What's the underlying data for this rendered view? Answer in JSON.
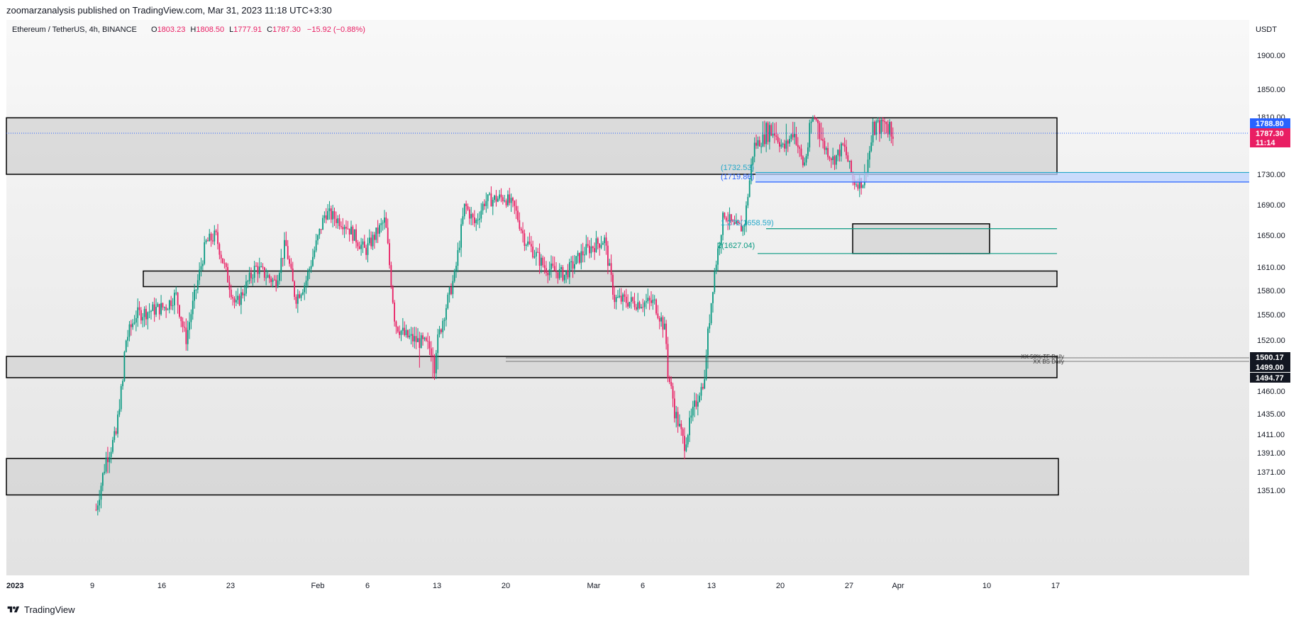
{
  "header": {
    "published_by": "zoomarzanalysis published on TradingView.com, Mar 31, 2023 11:18 UTC+3:30"
  },
  "legend": {
    "symbol": "Ethereum / TetherUS, 4h, BINANCE",
    "open_label": "O",
    "open": "1803.23",
    "high_label": "H",
    "high": "1808.50",
    "low_label": "L",
    "low": "1777.91",
    "close_label": "C",
    "close": "1787.30",
    "change": "−15.92 (−0.88%)"
  },
  "price_scale": {
    "currency": "USDT",
    "ticks": [
      "1900.00",
      "1850.00",
      "1810.00",
      "1730.00",
      "1690.00",
      "1650.00",
      "1610.00",
      "1580.00",
      "1550.00",
      "1520.00",
      "1460.00",
      "1435.00",
      "1411.00",
      "1391.00",
      "1371.00",
      "1351.00"
    ]
  },
  "price_badges": [
    {
      "text": "1788.80",
      "color": "#2962ff"
    },
    {
      "text": "1787.30",
      "color": "#e91e63"
    },
    {
      "text": "11:14",
      "color": "#e91e63"
    },
    {
      "text": "1500.17",
      "color": "#131722"
    },
    {
      "text": "1499.00",
      "color": "#131722"
    },
    {
      "text": "1494.77",
      "color": "#131722"
    }
  ],
  "level_labels": [
    "XX 50% TF Daily",
    "XX BS Daily"
  ],
  "fib_labels": [
    {
      "text": "(1732.53)",
      "color": "#22a7c9"
    },
    {
      "text": "(1719.86)",
      "color": "#2962ff"
    },
    {
      "text": "1.272(1658.59)",
      "color": "#22a7c9"
    },
    {
      "text": "2(1627.04)",
      "color": "#089981"
    }
  ],
  "time_axis": {
    "labels": [
      "2023",
      "9",
      "16",
      "23",
      "Feb",
      "6",
      "13",
      "20",
      "Mar",
      "6",
      "13",
      "20",
      "27",
      "Apr",
      "10",
      "17"
    ]
  },
  "footer": {
    "brand": "TradingView"
  },
  "colors": {
    "up": "#089981",
    "down": "#e91e63",
    "zone_fill": "#d6d6d6",
    "background_top": "#f8f8f8",
    "background_bottom": "#e2e2e2"
  },
  "chart_data": {
    "type": "candlestick",
    "title": "Ethereum / TetherUS, 4h, BINANCE",
    "ylabel": "USDT",
    "ylim": [
      1351,
      1922
    ],
    "x_range": [
      "2023-01-01",
      "2023-04-18"
    ],
    "key_points": [
      {
        "date": "2023-01-10",
        "close": 1330
      },
      {
        "date": "2023-01-11",
        "close": 1385
      },
      {
        "date": "2023-01-12",
        "close": 1410
      },
      {
        "date": "2023-01-13",
        "close": 1520
      },
      {
        "date": "2023-01-14",
        "close": 1550
      },
      {
        "date": "2023-01-17",
        "close": 1560
      },
      {
        "date": "2023-01-18",
        "close": 1575
      },
      {
        "date": "2023-01-19",
        "close": 1520
      },
      {
        "date": "2023-01-21",
        "close": 1640
      },
      {
        "date": "2023-01-22",
        "close": 1650
      },
      {
        "date": "2023-01-24",
        "close": 1560
      },
      {
        "date": "2023-01-26",
        "close": 1610
      },
      {
        "date": "2023-01-28",
        "close": 1590
      },
      {
        "date": "2023-01-29",
        "close": 1640
      },
      {
        "date": "2023-01-30",
        "close": 1570
      },
      {
        "date": "2023-01-31",
        "close": 1590
      },
      {
        "date": "2023-02-02",
        "close": 1680
      },
      {
        "date": "2023-02-04",
        "close": 1665
      },
      {
        "date": "2023-02-06",
        "close": 1630
      },
      {
        "date": "2023-02-08",
        "close": 1670
      },
      {
        "date": "2023-02-09",
        "close": 1540
      },
      {
        "date": "2023-02-10",
        "close": 1525
      },
      {
        "date": "2023-02-12",
        "close": 1515
      },
      {
        "date": "2023-02-13",
        "close": 1505
      },
      {
        "date": "2023-02-14",
        "close": 1555
      },
      {
        "date": "2023-02-15",
        "close": 1600
      },
      {
        "date": "2023-02-16",
        "close": 1690
      },
      {
        "date": "2023-02-17",
        "close": 1665
      },
      {
        "date": "2023-02-18",
        "close": 1695
      },
      {
        "date": "2023-02-20",
        "close": 1700
      },
      {
        "date": "2023-02-21",
        "close": 1685
      },
      {
        "date": "2023-02-22",
        "close": 1645
      },
      {
        "date": "2023-02-24",
        "close": 1610
      },
      {
        "date": "2023-02-26",
        "close": 1600
      },
      {
        "date": "2023-02-28",
        "close": 1630
      },
      {
        "date": "2023-03-02",
        "close": 1645
      },
      {
        "date": "2023-03-03",
        "close": 1570
      },
      {
        "date": "2023-03-05",
        "close": 1565
      },
      {
        "date": "2023-03-07",
        "close": 1565
      },
      {
        "date": "2023-03-08",
        "close": 1535
      },
      {
        "date": "2023-03-09",
        "close": 1440
      },
      {
        "date": "2023-03-10",
        "close": 1400
      },
      {
        "date": "2023-03-11",
        "close": 1440
      },
      {
        "date": "2023-03-12",
        "close": 1480
      },
      {
        "date": "2023-03-13",
        "close": 1600
      },
      {
        "date": "2023-03-14",
        "close": 1680
      },
      {
        "date": "2023-03-15",
        "close": 1660
      },
      {
        "date": "2023-03-16",
        "close": 1660
      },
      {
        "date": "2023-03-17",
        "close": 1770
      },
      {
        "date": "2023-03-18",
        "close": 1780
      },
      {
        "date": "2023-03-19",
        "close": 1790
      },
      {
        "date": "2023-03-20",
        "close": 1765
      },
      {
        "date": "2023-03-21",
        "close": 1790
      },
      {
        "date": "2023-03-22",
        "close": 1740
      },
      {
        "date": "2023-03-23",
        "close": 1810
      },
      {
        "date": "2023-03-24",
        "close": 1770
      },
      {
        "date": "2023-03-25",
        "close": 1750
      },
      {
        "date": "2023-03-26",
        "close": 1770
      },
      {
        "date": "2023-03-27",
        "close": 1720
      },
      {
        "date": "2023-03-28",
        "close": 1720
      },
      {
        "date": "2023-03-29",
        "close": 1790
      },
      {
        "date": "2023-03-30",
        "close": 1795
      },
      {
        "date": "2023-03-31",
        "close": 1787.3
      }
    ],
    "zones": [
      {
        "from": 1730,
        "to": 1807
      },
      {
        "from": 1585,
        "to": 1605
      },
      {
        "from": 1494.77,
        "to": 1500.17
      },
      {
        "from": 1346,
        "to": 1385
      },
      {
        "from": 1627.04,
        "to": 1665
      }
    ],
    "fib_levels": [
      1732.53,
      1719.86,
      1658.59,
      1627.04
    ],
    "last_price": 1787.3
  }
}
